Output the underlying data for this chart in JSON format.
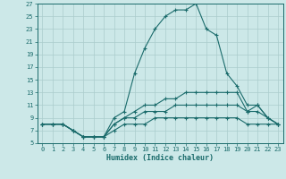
{
  "xlabel": "Humidex (Indice chaleur)",
  "bg_color": "#cce8e8",
  "grid_color": "#aacccc",
  "line_color": "#1a6b6b",
  "xlim": [
    -0.5,
    23.5
  ],
  "ylim": [
    5,
    27
  ],
  "yticks": [
    5,
    7,
    9,
    11,
    13,
    15,
    17,
    19,
    21,
    23,
    25,
    27
  ],
  "xticks": [
    0,
    1,
    2,
    3,
    4,
    5,
    6,
    7,
    8,
    9,
    10,
    11,
    12,
    13,
    14,
    15,
    16,
    17,
    18,
    19,
    20,
    21,
    22,
    23
  ],
  "series": [
    {
      "x": [
        0,
        1,
        2,
        3,
        4,
        5,
        6,
        7,
        8,
        9,
        10,
        11,
        12,
        13,
        14,
        15,
        16,
        17,
        18,
        19,
        20,
        21,
        22,
        23
      ],
      "y": [
        8,
        8,
        8,
        7,
        6,
        6,
        6,
        9,
        10,
        16,
        20,
        23,
        25,
        26,
        26,
        27,
        23,
        22,
        16,
        14,
        11,
        11,
        9,
        8
      ]
    },
    {
      "x": [
        0,
        1,
        2,
        3,
        4,
        5,
        6,
        7,
        8,
        9,
        10,
        11,
        12,
        13,
        14,
        15,
        16,
        17,
        18,
        19,
        20,
        21,
        22,
        23
      ],
      "y": [
        8,
        8,
        8,
        7,
        6,
        6,
        6,
        8,
        9,
        10,
        11,
        11,
        12,
        12,
        13,
        13,
        13,
        13,
        13,
        13,
        10,
        11,
        9,
        8
      ]
    },
    {
      "x": [
        0,
        1,
        2,
        3,
        4,
        5,
        6,
        7,
        8,
        9,
        10,
        11,
        12,
        13,
        14,
        15,
        16,
        17,
        18,
        19,
        20,
        21,
        22,
        23
      ],
      "y": [
        8,
        8,
        8,
        7,
        6,
        6,
        6,
        8,
        9,
        9,
        10,
        10,
        10,
        11,
        11,
        11,
        11,
        11,
        11,
        11,
        10,
        10,
        9,
        8
      ]
    },
    {
      "x": [
        0,
        1,
        2,
        3,
        4,
        5,
        6,
        7,
        8,
        9,
        10,
        11,
        12,
        13,
        14,
        15,
        16,
        17,
        18,
        19,
        20,
        21,
        22,
        23
      ],
      "y": [
        8,
        8,
        8,
        7,
        6,
        6,
        6,
        7,
        8,
        8,
        8,
        9,
        9,
        9,
        9,
        9,
        9,
        9,
        9,
        9,
        8,
        8,
        8,
        8
      ]
    }
  ]
}
